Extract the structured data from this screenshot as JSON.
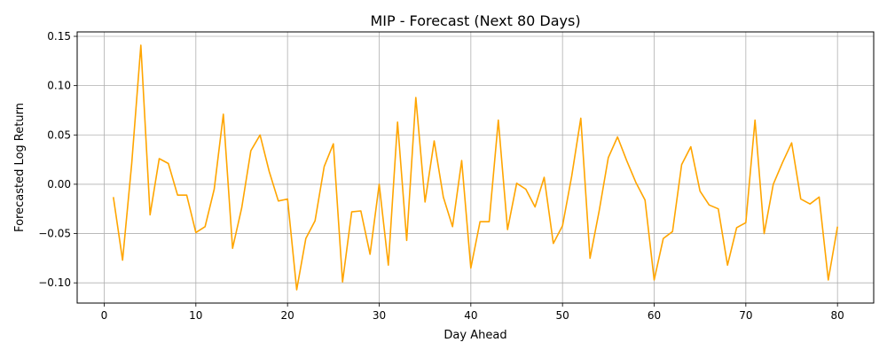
{
  "chart_data": {
    "type": "line",
    "title": "MIP - Forecast (Next 80 Days)",
    "xlabel": "Day Ahead",
    "ylabel": "Forecasted Log Return",
    "xlim": [
      -2.95,
      83.95
    ],
    "ylim": [
      -0.1205,
      0.1545
    ],
    "xticks": [
      0,
      10,
      20,
      30,
      40,
      50,
      60,
      70,
      80
    ],
    "xtick_labels": [
      "0",
      "10",
      "20",
      "30",
      "40",
      "50",
      "60",
      "70",
      "80"
    ],
    "yticks": [
      -0.1,
      -0.05,
      0.0,
      0.05,
      0.1,
      0.15
    ],
    "ytick_labels": [
      "−0.10",
      "−0.05",
      "0.00",
      "0.05",
      "0.10",
      "0.15"
    ],
    "grid": true,
    "series": [
      {
        "color": "#ffa500",
        "x": [
          1,
          2,
          3,
          4,
          5,
          6,
          7,
          8,
          9,
          10,
          11,
          12,
          13,
          14,
          15,
          16,
          17,
          18,
          19,
          20,
          21,
          22,
          23,
          24,
          25,
          26,
          27,
          28,
          29,
          30,
          31,
          32,
          33,
          34,
          35,
          36,
          37,
          38,
          39,
          40,
          41,
          42,
          43,
          44,
          45,
          46,
          47,
          48,
          49,
          50,
          51,
          52,
          53,
          54,
          55,
          56,
          57,
          58,
          59,
          60,
          61,
          62,
          63,
          64,
          65,
          66,
          67,
          68,
          69,
          70,
          71,
          72,
          73,
          74,
          75,
          76,
          77,
          78,
          79,
          80
        ],
        "y": [
          -0.013,
          -0.077,
          0.021,
          0.141,
          -0.031,
          0.026,
          0.021,
          -0.011,
          -0.011,
          -0.049,
          -0.043,
          -0.005,
          0.071,
          -0.065,
          -0.024,
          0.034,
          0.05,
          0.013,
          -0.017,
          -0.015,
          -0.107,
          -0.055,
          -0.037,
          0.018,
          0.041,
          -0.099,
          -0.028,
          -0.027,
          -0.071,
          0.0,
          -0.082,
          0.063,
          -0.057,
          0.088,
          -0.018,
          0.044,
          -0.013,
          -0.043,
          0.024,
          -0.085,
          -0.038,
          -0.038,
          0.065,
          -0.046,
          0.001,
          -0.005,
          -0.023,
          0.007,
          -0.06,
          -0.042,
          0.008,
          0.067,
          -0.075,
          -0.027,
          0.027,
          0.048,
          0.024,
          0.002,
          -0.016,
          -0.097,
          -0.055,
          -0.048,
          0.02,
          0.038,
          -0.007,
          -0.021,
          -0.025,
          -0.082,
          -0.044,
          -0.039,
          0.065,
          -0.05,
          0.0,
          0.022,
          0.042,
          -0.015,
          -0.02,
          -0.013,
          -0.097,
          -0.043
        ]
      }
    ]
  }
}
